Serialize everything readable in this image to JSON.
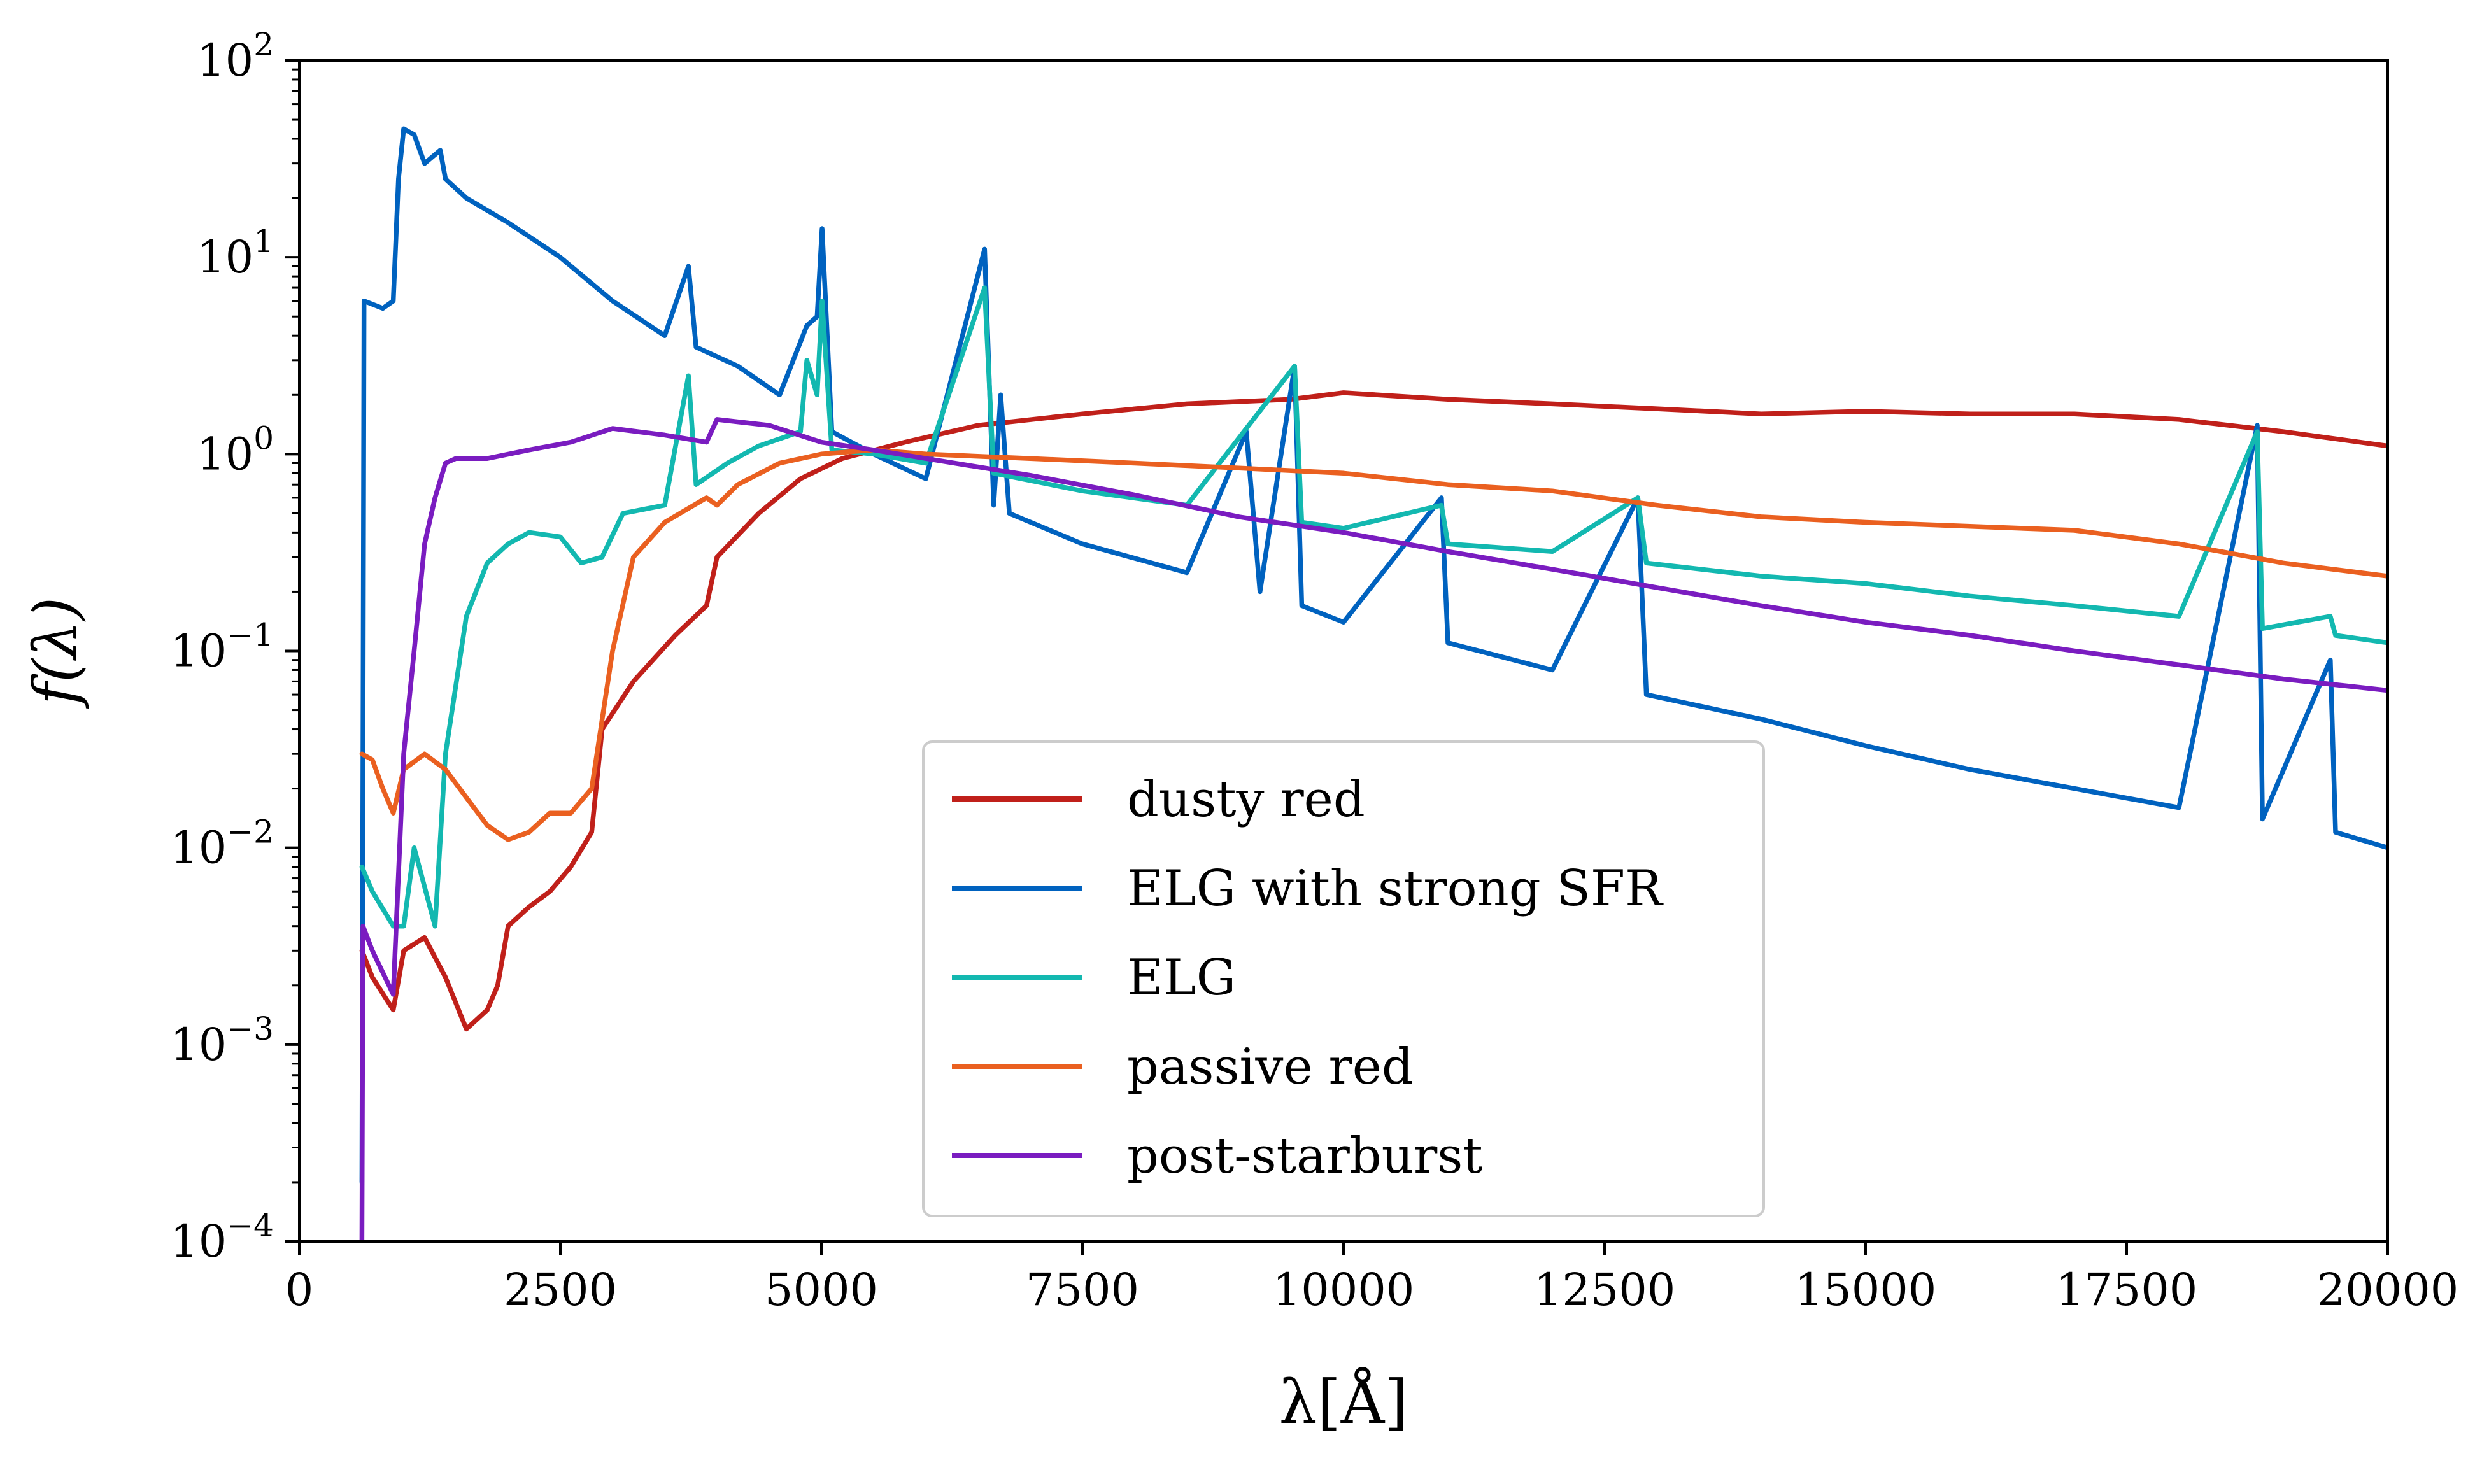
{
  "chart_data": {
    "type": "line",
    "title": "",
    "xlabel": "λ[Å]",
    "ylabel": "f(λ)",
    "xlim": [
      0,
      20000
    ],
    "ylim": [
      0.0001,
      100
    ],
    "yscale": "log",
    "grid": false,
    "legend_position": "bottom-center",
    "x_ticks": [
      0,
      2500,
      5000,
      7500,
      10000,
      12500,
      15000,
      17500,
      20000
    ],
    "x_tick_labels": [
      "0",
      "2500",
      "5000",
      "7500",
      "10000",
      "12500",
      "15000",
      "17500",
      "20000"
    ],
    "y_ticks": [
      0.0001,
      0.001,
      0.01,
      0.1,
      1,
      10,
      100
    ],
    "y_tick_labels": [
      {
        "base": "10",
        "exp": "−4"
      },
      {
        "base": "10",
        "exp": "−3"
      },
      {
        "base": "10",
        "exp": "−2"
      },
      {
        "base": "10",
        "exp": "−1"
      },
      {
        "base": "10",
        "exp": "0"
      },
      {
        "base": "10",
        "exp": "1"
      },
      {
        "base": "10",
        "exp": "2"
      }
    ],
    "series": [
      {
        "name": "dusty red",
        "color": "#c0201a",
        "points": [
          [
            600,
            0.003
          ],
          [
            700,
            0.0022
          ],
          [
            900,
            0.0015
          ],
          [
            1000,
            0.003
          ],
          [
            1200,
            0.0035
          ],
          [
            1400,
            0.0022
          ],
          [
            1600,
            0.0012
          ],
          [
            1800,
            0.0015
          ],
          [
            1900,
            0.002
          ],
          [
            2000,
            0.004
          ],
          [
            2200,
            0.005
          ],
          [
            2400,
            0.006
          ],
          [
            2600,
            0.008
          ],
          [
            2800,
            0.012
          ],
          [
            2900,
            0.04
          ],
          [
            3200,
            0.07
          ],
          [
            3600,
            0.12
          ],
          [
            3900,
            0.17
          ],
          [
            4000,
            0.3
          ],
          [
            4400,
            0.5
          ],
          [
            4800,
            0.75
          ],
          [
            5200,
            0.95
          ],
          [
            5800,
            1.15
          ],
          [
            6500,
            1.4
          ],
          [
            7500,
            1.6
          ],
          [
            8500,
            1.8
          ],
          [
            9500,
            1.9
          ],
          [
            10000,
            2.05
          ],
          [
            11000,
            1.9
          ],
          [
            12000,
            1.8
          ],
          [
            13000,
            1.7
          ],
          [
            14000,
            1.6
          ],
          [
            15000,
            1.65
          ],
          [
            16000,
            1.6
          ],
          [
            17000,
            1.6
          ],
          [
            18000,
            1.5
          ],
          [
            19000,
            1.3
          ],
          [
            20000,
            1.1
          ]
        ]
      },
      {
        "name": "ELG with strong SFR",
        "color": "#0062bf",
        "points": [
          [
            600,
            0.0002
          ],
          [
            620,
            6
          ],
          [
            800,
            5.5
          ],
          [
            900,
            6
          ],
          [
            950,
            25
          ],
          [
            1000,
            45
          ],
          [
            1100,
            42
          ],
          [
            1200,
            30
          ],
          [
            1350,
            35
          ],
          [
            1400,
            25
          ],
          [
            1600,
            20
          ],
          [
            2000,
            15
          ],
          [
            2500,
            10
          ],
          [
            3000,
            6
          ],
          [
            3500,
            4
          ],
          [
            3727,
            9
          ],
          [
            3800,
            3.5
          ],
          [
            4200,
            2.8
          ],
          [
            4600,
            2
          ],
          [
            4861,
            4.5
          ],
          [
            4959,
            5
          ],
          [
            5007,
            14
          ],
          [
            5100,
            1.3
          ],
          [
            5500,
            1
          ],
          [
            6000,
            0.75
          ],
          [
            6563,
            11
          ],
          [
            6650,
            0.55
          ],
          [
            6717,
            2
          ],
          [
            6800,
            0.5
          ],
          [
            7500,
            0.35
          ],
          [
            8500,
            0.25
          ],
          [
            9069,
            1.3
          ],
          [
            9200,
            0.2
          ],
          [
            9532,
            2.8
          ],
          [
            9600,
            0.17
          ],
          [
            10000,
            0.14
          ],
          [
            10938,
            0.6
          ],
          [
            11000,
            0.11
          ],
          [
            12000,
            0.08
          ],
          [
            12818,
            0.6
          ],
          [
            12900,
            0.06
          ],
          [
            14000,
            0.045
          ],
          [
            15000,
            0.033
          ],
          [
            16000,
            0.025
          ],
          [
            17000,
            0.02
          ],
          [
            18000,
            0.016
          ],
          [
            18750,
            1.4
          ],
          [
            18800,
            0.014
          ],
          [
            19450,
            0.09
          ],
          [
            19500,
            0.012
          ],
          [
            20000,
            0.01
          ]
        ]
      },
      {
        "name": "ELG",
        "color": "#13b8b0",
        "points": [
          [
            600,
            0.008
          ],
          [
            700,
            0.006
          ],
          [
            900,
            0.004
          ],
          [
            1000,
            0.004
          ],
          [
            1100,
            0.01
          ],
          [
            1300,
            0.004
          ],
          [
            1400,
            0.03
          ],
          [
            1600,
            0.15
          ],
          [
            1800,
            0.28
          ],
          [
            2000,
            0.35
          ],
          [
            2200,
            0.4
          ],
          [
            2500,
            0.38
          ],
          [
            2700,
            0.28
          ],
          [
            2900,
            0.3
          ],
          [
            3100,
            0.5
          ],
          [
            3500,
            0.55
          ],
          [
            3727,
            2.5
          ],
          [
            3800,
            0.7
          ],
          [
            4100,
            0.9
          ],
          [
            4400,
            1.1
          ],
          [
            4800,
            1.3
          ],
          [
            4861,
            3
          ],
          [
            4959,
            2
          ],
          [
            5007,
            6
          ],
          [
            5100,
            1.05
          ],
          [
            5500,
            1
          ],
          [
            6000,
            0.9
          ],
          [
            6563,
            7
          ],
          [
            6650,
            0.8
          ],
          [
            7500,
            0.65
          ],
          [
            8500,
            0.55
          ],
          [
            9532,
            2.8
          ],
          [
            9600,
            0.45
          ],
          [
            10000,
            0.42
          ],
          [
            10938,
            0.55
          ],
          [
            11000,
            0.35
          ],
          [
            12000,
            0.32
          ],
          [
            12818,
            0.6
          ],
          [
            12900,
            0.28
          ],
          [
            14000,
            0.24
          ],
          [
            15000,
            0.22
          ],
          [
            16000,
            0.19
          ],
          [
            17000,
            0.17
          ],
          [
            18000,
            0.15
          ],
          [
            18750,
            1.3
          ],
          [
            18800,
            0.13
          ],
          [
            19450,
            0.15
          ],
          [
            19500,
            0.12
          ],
          [
            20000,
            0.11
          ]
        ]
      },
      {
        "name": "passive red",
        "color": "#ea6020",
        "points": [
          [
            600,
            0.03
          ],
          [
            700,
            0.028
          ],
          [
            800,
            0.02
          ],
          [
            900,
            0.015
          ],
          [
            1000,
            0.025
          ],
          [
            1200,
            0.03
          ],
          [
            1400,
            0.025
          ],
          [
            1600,
            0.018
          ],
          [
            1800,
            0.013
          ],
          [
            2000,
            0.011
          ],
          [
            2200,
            0.012
          ],
          [
            2400,
            0.015
          ],
          [
            2600,
            0.015
          ],
          [
            2800,
            0.02
          ],
          [
            3000,
            0.1
          ],
          [
            3200,
            0.3
          ],
          [
            3500,
            0.45
          ],
          [
            3900,
            0.6
          ],
          [
            4000,
            0.55
          ],
          [
            4200,
            0.7
          ],
          [
            4600,
            0.9
          ],
          [
            5000,
            1
          ],
          [
            5500,
            1.05
          ],
          [
            6000,
            1
          ],
          [
            7000,
            0.95
          ],
          [
            8000,
            0.9
          ],
          [
            9000,
            0.85
          ],
          [
            10000,
            0.8
          ],
          [
            11000,
            0.7
          ],
          [
            12000,
            0.65
          ],
          [
            13000,
            0.55
          ],
          [
            14000,
            0.48
          ],
          [
            15000,
            0.45
          ],
          [
            16000,
            0.43
          ],
          [
            17000,
            0.41
          ],
          [
            18000,
            0.35
          ],
          [
            19000,
            0.28
          ],
          [
            20000,
            0.24
          ]
        ]
      },
      {
        "name": "post-starburst",
        "color": "#7a1cc0",
        "points": [
          [
            600,
            0.0001
          ],
          [
            610,
            0.004
          ],
          [
            700,
            0.003
          ],
          [
            900,
            0.0018
          ],
          [
            1000,
            0.03
          ],
          [
            1100,
            0.1
          ],
          [
            1200,
            0.35
          ],
          [
            1300,
            0.6
          ],
          [
            1400,
            0.9
          ],
          [
            1500,
            0.95
          ],
          [
            1800,
            0.95
          ],
          [
            2200,
            1.05
          ],
          [
            2600,
            1.15
          ],
          [
            3000,
            1.35
          ],
          [
            3500,
            1.25
          ],
          [
            3900,
            1.15
          ],
          [
            4000,
            1.5
          ],
          [
            4500,
            1.4
          ],
          [
            5000,
            1.15
          ],
          [
            5500,
            1.05
          ],
          [
            6000,
            0.95
          ],
          [
            7000,
            0.78
          ],
          [
            8000,
            0.62
          ],
          [
            9000,
            0.48
          ],
          [
            10000,
            0.4
          ],
          [
            11000,
            0.32
          ],
          [
            12000,
            0.26
          ],
          [
            13000,
            0.21
          ],
          [
            14000,
            0.17
          ],
          [
            15000,
            0.14
          ],
          [
            16000,
            0.12
          ],
          [
            17000,
            0.1
          ],
          [
            18000,
            0.085
          ],
          [
            19000,
            0.072
          ],
          [
            20000,
            0.063
          ]
        ]
      }
    ]
  }
}
